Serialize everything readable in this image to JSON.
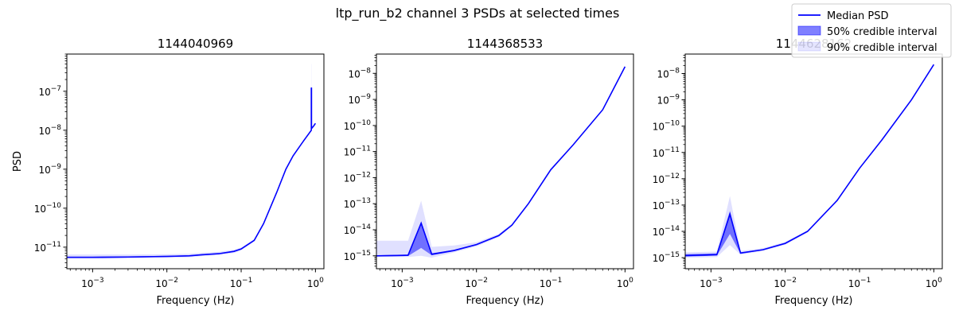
{
  "figure_title": "ltp_run_b2 channel 3 PSDs at selected times",
  "legend": {
    "placement": "top-right",
    "entries": [
      {
        "label": "Median PSD",
        "kind": "line",
        "color": "#0000ff"
      },
      {
        "label": "50% credible interval",
        "kind": "patch",
        "color": "#0000ff",
        "opacity": 0.5
      },
      {
        "label": "90% credible interval",
        "kind": "patch",
        "color": "#0000ff",
        "opacity": 0.1
      }
    ]
  },
  "chart_data": [
    {
      "type": "area",
      "title": "1144040969",
      "xlabel": "Frequency (Hz)",
      "ylabel": "PSD",
      "x_scale": "log",
      "y_scale": "log",
      "xlim": [
        0.00045,
        1.3
      ],
      "ylim": [
        2.8e-12,
        9e-07
      ],
      "xticks": [
        {
          "value": 0.001,
          "label": "10-3"
        },
        {
          "value": 0.01,
          "label": "10-2"
        },
        {
          "value": 0.1,
          "label": "10-1"
        },
        {
          "value": 1,
          "label": "100"
        }
      ],
      "yticks": [
        {
          "value": 1e-11,
          "label": "10-11"
        },
        {
          "value": 1e-10,
          "label": "10-10"
        },
        {
          "value": 1e-09,
          "label": "10-9"
        },
        {
          "value": 1e-08,
          "label": "10-8"
        },
        {
          "value": 1e-07,
          "label": "10-7"
        }
      ],
      "x": [
        0.00045,
        0.001,
        0.003,
        0.01,
        0.02,
        0.03,
        0.05,
        0.08,
        0.1,
        0.15,
        0.2,
        0.3,
        0.4,
        0.5,
        0.7,
        0.88,
        0.88,
        0.885,
        0.885,
        0.95,
        1.0
      ],
      "median": [
        5.5e-12,
        5.5e-12,
        5.6e-12,
        5.8e-12,
        6e-12,
        6.4e-12,
        6.8e-12,
        7.8e-12,
        9e-12,
        1.5e-11,
        4e-11,
        2.5e-10,
        1e-09,
        2.2e-09,
        5.5e-09,
        1e-08,
        1.2e-07,
        1.2e-07,
        1.1e-08,
        1.3e-08,
        1.5e-08
      ],
      "ci50_low": [
        5.3e-12,
        5.3e-12,
        5.4e-12,
        5.6e-12,
        5.8e-12,
        6.2e-12,
        6.6e-12,
        7.5e-12,
        8.7e-12,
        1.45e-11,
        3.9e-11,
        2.45e-10,
        9.8e-10,
        2.15e-09,
        5.4e-09,
        9.8e-09,
        9.8e-09,
        9.8e-09,
        1.08e-08,
        1.28e-08,
        1.47e-08
      ],
      "ci50_high": [
        5.7e-12,
        5.7e-12,
        5.8e-12,
        6e-12,
        6.2e-12,
        6.6e-12,
        7e-12,
        8.1e-12,
        9.3e-12,
        1.55e-11,
        4.1e-11,
        2.55e-10,
        1.02e-09,
        2.25e-09,
        5.6e-09,
        1.02e-08,
        1.3e-07,
        1.3e-07,
        1.12e-08,
        1.32e-08,
        1.53e-08
      ],
      "ci90_low": [
        5e-12,
        5e-12,
        5.1e-12,
        5.3e-12,
        5.5e-12,
        5.9e-12,
        6.3e-12,
        7.1e-12,
        8.3e-12,
        1.4e-11,
        3.8e-11,
        2.4e-10,
        9.5e-10,
        2.1e-09,
        5.3e-09,
        9.5e-09,
        9.5e-09,
        9.5e-09,
        1.05e-08,
        1.25e-08,
        1.45e-08
      ],
      "ci90_high": [
        6.5e-12,
        6.5e-12,
        6.5e-12,
        6.6e-12,
        6.8e-12,
        7.2e-12,
        7.6e-12,
        8.6e-12,
        9.8e-12,
        1.6e-11,
        4.2e-11,
        2.6e-10,
        1.05e-09,
        2.3e-09,
        5.7e-09,
        1.05e-08,
        5e-07,
        5e-07,
        1.15e-08,
        1.35e-08,
        1.55e-08
      ]
    },
    {
      "type": "area",
      "title": "1144368533",
      "xlabel": "Frequency (Hz)",
      "ylabel": "",
      "x_scale": "log",
      "y_scale": "log",
      "xlim": [
        0.00045,
        1.3
      ],
      "ylim": [
        3.2e-16,
        5.5e-08
      ],
      "xticks": [
        {
          "value": 0.001,
          "label": "10-3"
        },
        {
          "value": 0.01,
          "label": "10-2"
        },
        {
          "value": 0.1,
          "label": "10-1"
        },
        {
          "value": 1,
          "label": "100"
        }
      ],
      "yticks": [
        {
          "value": 1e-15,
          "label": "10-15"
        },
        {
          "value": 1e-14,
          "label": "10-14"
        },
        {
          "value": 1e-13,
          "label": "10-13"
        },
        {
          "value": 1e-12,
          "label": "10-12"
        },
        {
          "value": 1e-11,
          "label": "10-11"
        },
        {
          "value": 1e-10,
          "label": "10-10"
        },
        {
          "value": 1e-09,
          "label": "10-9"
        },
        {
          "value": 1e-08,
          "label": "10-8"
        }
      ],
      "x": [
        0.00045,
        0.0012,
        0.0018,
        0.0025,
        0.005,
        0.01,
        0.02,
        0.03,
        0.05,
        0.1,
        0.2,
        0.5,
        1.0
      ],
      "median": [
        1e-15,
        1.05e-15,
        1.8e-14,
        1.15e-15,
        1.6e-15,
        2.7e-15,
        6e-15,
        1.5e-14,
        1e-13,
        2e-12,
        1.8e-11,
        4e-10,
        1.8e-08
      ],
      "ci50_low": [
        9.5e-16,
        9.8e-16,
        2e-15,
        1.05e-15,
        1.5e-15,
        2.55e-15,
        5.7e-15,
        1.45e-14,
        9.5e-14,
        1.9e-12,
        1.75e-11,
        3.9e-10,
        1.75e-08
      ],
      "ci50_high": [
        1.05e-15,
        1.12e-15,
        1.9e-14,
        1.25e-15,
        1.7e-15,
        2.85e-15,
        6.3e-15,
        1.55e-14,
        1.05e-13,
        2.1e-12,
        1.85e-11,
        4.1e-10,
        1.85e-08
      ],
      "ci90_low": [
        9e-16,
        9e-16,
        1e-15,
        8.5e-16,
        1.35e-15,
        2.3e-15,
        5.2e-15,
        1.35e-14,
        9e-14,
        1.85e-12,
        1.7e-11,
        3.8e-10,
        1.7e-08
      ],
      "ci90_high": [
        3.8e-15,
        3.8e-15,
        1.3e-13,
        2.2e-15,
        2.5e-15,
        3.3e-15,
        7e-15,
        1.7e-14,
        1.1e-13,
        2.2e-12,
        1.9e-11,
        4.2e-10,
        1.9e-08
      ]
    },
    {
      "type": "area",
      "title": "1144628162",
      "xlabel": "Frequency (Hz)",
      "ylabel": "",
      "x_scale": "log",
      "y_scale": "log",
      "xlim": [
        0.00045,
        1.3
      ],
      "ylim": [
        3.8e-16,
        5.5e-08
      ],
      "xticks": [
        {
          "value": 0.001,
          "label": "10-3"
        },
        {
          "value": 0.01,
          "label": "10-2"
        },
        {
          "value": 0.1,
          "label": "10-1"
        },
        {
          "value": 1,
          "label": "100"
        }
      ],
      "yticks": [
        {
          "value": 1e-15,
          "label": "10-15"
        },
        {
          "value": 1e-14,
          "label": "10-14"
        },
        {
          "value": 1e-13,
          "label": "10-13"
        },
        {
          "value": 1e-12,
          "label": "10-12"
        },
        {
          "value": 1e-11,
          "label": "10-11"
        },
        {
          "value": 1e-10,
          "label": "10-10"
        },
        {
          "value": 1e-09,
          "label": "10-9"
        },
        {
          "value": 1e-08,
          "label": "10-8"
        }
      ],
      "x": [
        0.00045,
        0.0012,
        0.0018,
        0.0025,
        0.005,
        0.01,
        0.02,
        0.05,
        0.1,
        0.2,
        0.5,
        1.0
      ],
      "median": [
        1.2e-15,
        1.3e-15,
        4.5e-14,
        1.5e-15,
        2e-15,
        3.5e-15,
        1e-14,
        1.5e-13,
        2.5e-12,
        3e-11,
        1e-09,
        2.2e-08
      ],
      "ci50_low": [
        1.1e-15,
        1.2e-15,
        8e-15,
        1.4e-15,
        1.9e-15,
        3.3e-15,
        9.5e-15,
        1.45e-13,
        2.4e-12,
        2.9e-11,
        9.7e-10,
        2.15e-08
      ],
      "ci50_high": [
        1.35e-15,
        1.45e-15,
        6e-14,
        1.6e-15,
        2.1e-15,
        3.7e-15,
        1.05e-14,
        1.55e-13,
        2.6e-12,
        3.1e-11,
        1.03e-09,
        2.25e-08
      ],
      "ci90_low": [
        1e-15,
        1.05e-15,
        3e-15,
        1.3e-15,
        1.8e-15,
        3.1e-15,
        9e-15,
        1.4e-13,
        2.3e-12,
        2.8e-11,
        9.5e-10,
        2.1e-08
      ],
      "ci90_high": [
        1.6e-15,
        1.7e-15,
        2.2e-13,
        1.8e-15,
        2.3e-15,
        4e-15,
        1.1e-14,
        1.6e-13,
        2.7e-12,
        3.2e-11,
        1.05e-09,
        2.3e-08
      ]
    }
  ]
}
